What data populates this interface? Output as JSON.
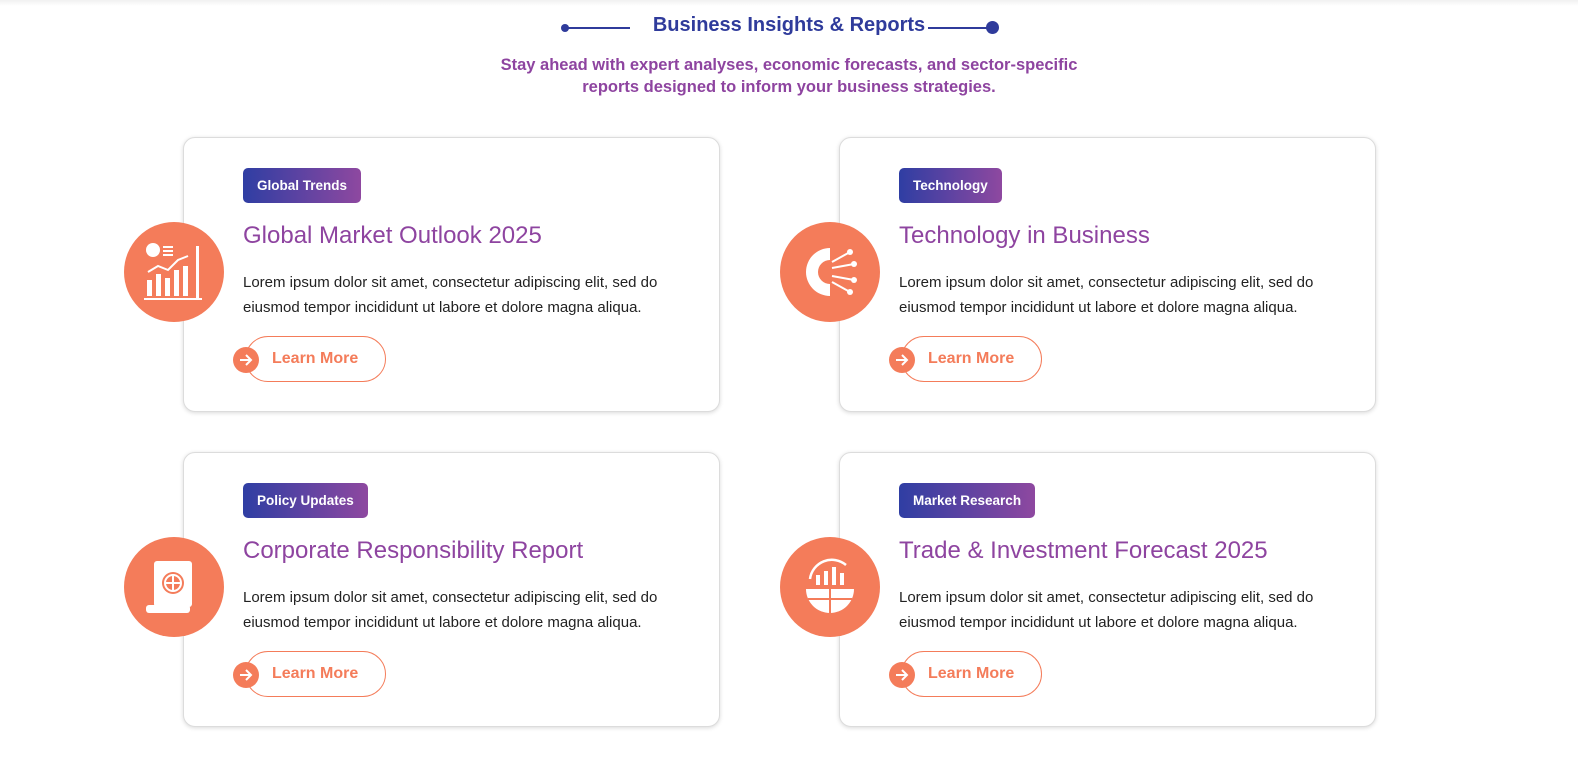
{
  "header": {
    "title": "Business Insights & Reports",
    "subtitle": "Stay ahead with expert analyses, economic forecasts, and sector-specific reports designed to inform your business strategies."
  },
  "cards": [
    {
      "tag": "Global Trends",
      "title": "Global Market Outlook 2025",
      "description": "Lorem ipsum dolor sit amet, consectetur adipiscing elit, sed do eiusmod tempor incididunt ut labore et dolore magna aliqua.",
      "button": "Learn More"
    },
    {
      "tag": "Technology",
      "title": "Technology in Business",
      "description": "Lorem ipsum dolor sit amet, consectetur adipiscing elit, sed do eiusmod tempor incididunt ut labore et dolore magna aliqua.",
      "button": "Learn More"
    },
    {
      "tag": "Policy Updates",
      "title": "Corporate Responsibility Report",
      "description": "Lorem ipsum dolor sit amet, consectetur adipiscing elit, sed do eiusmod tempor incididunt ut labore et dolore magna aliqua.",
      "button": "Learn More"
    },
    {
      "tag": "Market Research",
      "title": "Trade & Investment Forecast 2025",
      "description": "Lorem ipsum dolor sit amet, consectetur adipiscing elit, sed do eiusmod tempor incididunt ut labore et dolore magna aliqua.",
      "button": "Learn More"
    }
  ]
}
